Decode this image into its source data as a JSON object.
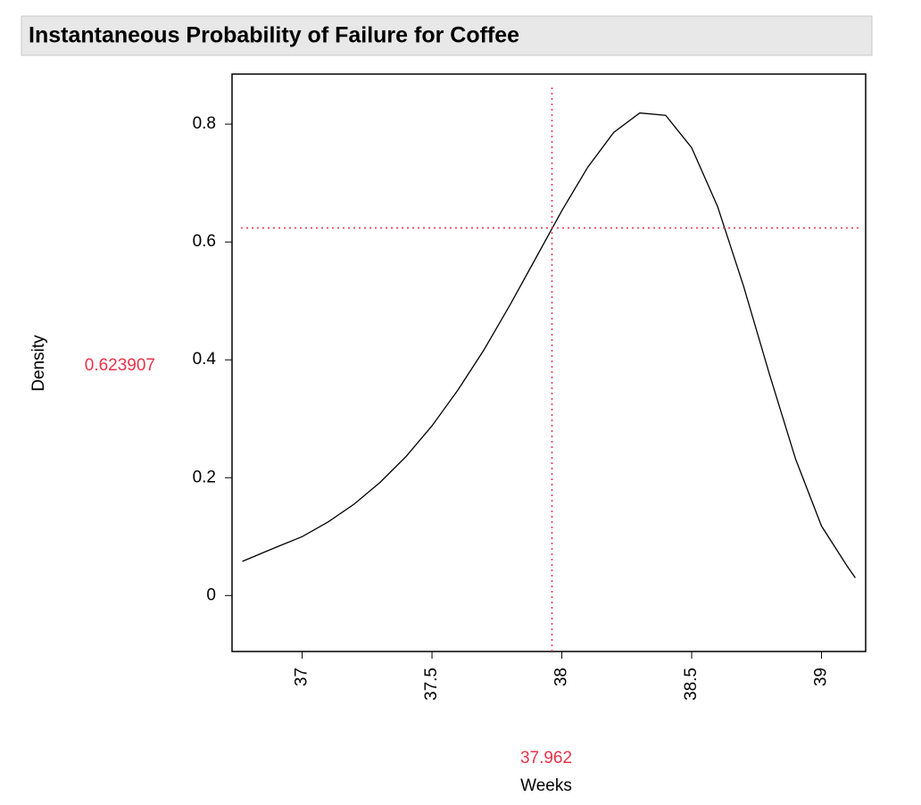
{
  "chart_data": {
    "type": "line",
    "title": "Instantaneous Probability of Failure for Coffee",
    "x_label": "Weeks",
    "y_label": "Density",
    "x": [
      36.77,
      36.9,
      37.0,
      37.1,
      37.2,
      37.3,
      37.4,
      37.5,
      37.6,
      37.7,
      37.8,
      37.9,
      38.0,
      38.1,
      38.2,
      38.3,
      38.4,
      38.5,
      38.6,
      38.7,
      38.8,
      38.9,
      39.0,
      39.1,
      39.13
    ],
    "values": [
      0.058,
      0.082,
      0.1,
      0.125,
      0.155,
      0.192,
      0.236,
      0.288,
      0.349,
      0.417,
      0.493,
      0.573,
      0.653,
      0.727,
      0.786,
      0.819,
      0.815,
      0.76,
      0.66,
      0.525,
      0.375,
      0.232,
      0.118,
      0.049,
      0.03
    ],
    "color": "#000000",
    "xlim": [
      36.73,
      39.17
    ],
    "xticks": [
      37,
      37.5,
      38,
      38.5,
      39
    ],
    "ylim": [
      -0.095,
      0.885
    ],
    "yticks": [
      0,
      0.2,
      0.4,
      0.6,
      0.8
    ],
    "crosshair": {
      "x": 37.962,
      "y": 0.623907,
      "color": "#e8334a"
    }
  }
}
